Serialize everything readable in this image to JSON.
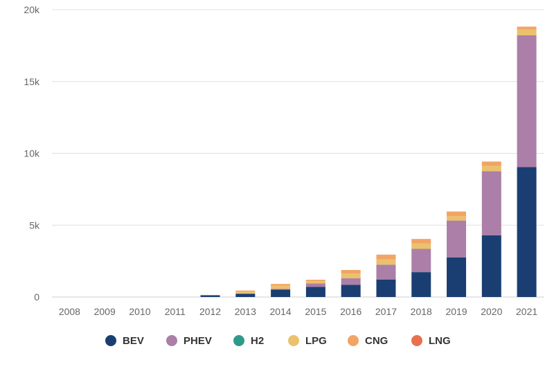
{
  "chart_data": {
    "type": "bar",
    "stacked": true,
    "categories": [
      "2008",
      "2009",
      "2010",
      "2011",
      "2012",
      "2013",
      "2014",
      "2015",
      "2016",
      "2017",
      "2018",
      "2019",
      "2020",
      "2021"
    ],
    "ylim": [
      0,
      20000
    ],
    "yticks": [
      0,
      5000,
      10000,
      15000,
      20000
    ],
    "ytick_labels": [
      "0",
      "5k",
      "10k",
      "15k",
      "20k"
    ],
    "grid": true,
    "legend_position": "bottom",
    "series": [
      {
        "name": "BEV",
        "color": "#1a3e72",
        "values": [
          0,
          0,
          0,
          0,
          120,
          220,
          520,
          700,
          850,
          1220,
          1730,
          2760,
          4300,
          9050
        ]
      },
      {
        "name": "PHEV",
        "color": "#ab7fa8",
        "values": [
          0,
          0,
          0,
          0,
          0,
          30,
          50,
          250,
          450,
          1030,
          1620,
          2560,
          4450,
          9170
        ]
      },
      {
        "name": "H2",
        "color": "#2f9a8a",
        "values": [
          0,
          0,
          0,
          0,
          0,
          0,
          0,
          0,
          0,
          0,
          0,
          0,
          0,
          0
        ]
      },
      {
        "name": "LPG",
        "color": "#eac16d",
        "values": [
          0,
          0,
          0,
          0,
          10,
          130,
          230,
          150,
          330,
          370,
          370,
          300,
          380,
          400
        ]
      },
      {
        "name": "CNG",
        "color": "#f2a465",
        "values": [
          0,
          0,
          0,
          0,
          5,
          70,
          110,
          100,
          250,
          330,
          320,
          330,
          300,
          200
        ]
      },
      {
        "name": "LNG",
        "color": "#e8704f",
        "values": [
          0,
          0,
          0,
          0,
          0,
          0,
          0,
          0,
          0,
          0,
          0,
          0,
          0,
          0
        ]
      }
    ]
  }
}
